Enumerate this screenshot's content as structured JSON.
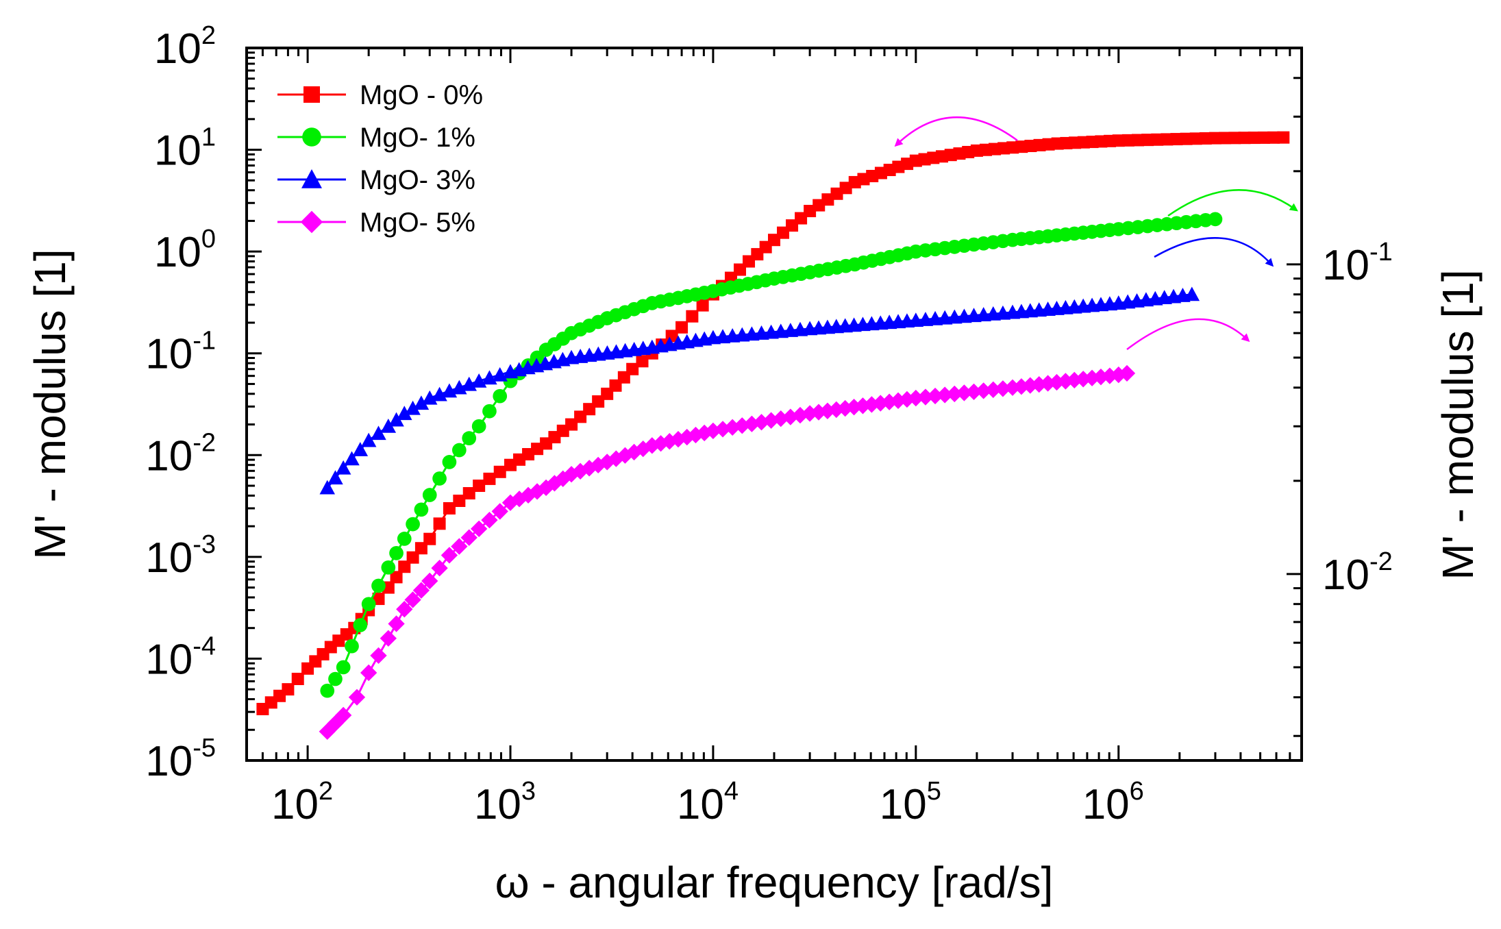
{
  "chart_data": {
    "type": "scatter",
    "title": "",
    "xlabel": "ω - angular frequency   [rad/s]",
    "ylabel": "M' - modulus  [1]",
    "ylabel_right": "M' - modulus  [1]",
    "x_scale": "log",
    "y_scale": "log",
    "xlim": [
      50,
      8000000
    ],
    "ylim": [
      1e-05,
      100
    ],
    "y2lim": [
      0.0025,
      0.5
    ],
    "x_ticks": [
      {
        "base": "10",
        "exp": "2",
        "value": 100
      },
      {
        "base": "10",
        "exp": "3",
        "value": 1000
      },
      {
        "base": "10",
        "exp": "4",
        "value": 10000
      },
      {
        "base": "10",
        "exp": "5",
        "value": 100000
      },
      {
        "base": "10",
        "exp": "6",
        "value": 1000000
      }
    ],
    "y_ticks": [
      {
        "base": "10",
        "exp": "-5",
        "value": 1e-05
      },
      {
        "base": "10",
        "exp": "-4",
        "value": 0.0001
      },
      {
        "base": "10",
        "exp": "-3",
        "value": 0.001
      },
      {
        "base": "10",
        "exp": "-2",
        "value": 0.01
      },
      {
        "base": "10",
        "exp": "-1",
        "value": 0.1
      },
      {
        "base": "10",
        "exp": "0",
        "value": 1
      },
      {
        "base": "10",
        "exp": "1",
        "value": 10
      },
      {
        "base": "10",
        "exp": "2",
        "value": 100
      }
    ],
    "y2_ticks": [
      {
        "base": "10",
        "exp": "-1",
        "value": 0.1
      },
      {
        "base": "10",
        "exp": "-2",
        "value": 0.01
      }
    ],
    "grid": false,
    "legend_position": "top-left",
    "series": [
      {
        "name": "MgO - 0%",
        "color": "#ff0000",
        "marker": "square",
        "axis": "left",
        "points": [
          [
            60,
            3.2e-05
          ],
          [
            80,
            5e-05
          ],
          [
            100,
            8e-05
          ],
          [
            130,
            0.00013
          ],
          [
            170,
            0.0002
          ],
          [
            200,
            0.0003
          ],
          [
            250,
            0.0005
          ],
          [
            300,
            0.0008
          ],
          [
            400,
            0.0015
          ],
          [
            500,
            0.003
          ],
          [
            700,
            0.005
          ],
          [
            1000,
            0.008
          ],
          [
            1500,
            0.013
          ],
          [
            2000,
            0.02
          ],
          [
            3000,
            0.04
          ],
          [
            4000,
            0.07
          ],
          [
            5000,
            0.1
          ],
          [
            7000,
            0.18
          ],
          [
            10000,
            0.38
          ],
          [
            15000,
            0.8
          ],
          [
            20000,
            1.3
          ],
          [
            30000,
            2.5
          ],
          [
            50000,
            4.8
          ],
          [
            100000,
            7.8
          ],
          [
            200000,
            9.8
          ],
          [
            500000,
            11.5
          ],
          [
            1000000,
            12.3
          ],
          [
            3000000,
            13
          ],
          [
            6500000,
            13.2
          ]
        ]
      },
      {
        "name": "MgO- 1%",
        "color": "#00ee00",
        "marker": "circle",
        "axis": "right",
        "points": [
          [
            125,
            0.0042
          ],
          [
            150,
            0.005
          ],
          [
            200,
            0.008
          ],
          [
            250,
            0.0105
          ],
          [
            300,
            0.013
          ],
          [
            400,
            0.018
          ],
          [
            500,
            0.023
          ],
          [
            700,
            0.03
          ],
          [
            1000,
            0.042
          ],
          [
            1500,
            0.053
          ],
          [
            2000,
            0.06
          ],
          [
            3000,
            0.067
          ],
          [
            5000,
            0.075
          ],
          [
            10000,
            0.082
          ],
          [
            20000,
            0.09
          ],
          [
            50000,
            0.1
          ],
          [
            100000,
            0.11
          ],
          [
            300000,
            0.12
          ],
          [
            1000000,
            0.13
          ],
          [
            3000000,
            0.14
          ]
        ]
      },
      {
        "name": "MgO- 3%",
        "color": "#0000ff",
        "marker": "triangle",
        "axis": "right",
        "points": [
          [
            125,
            0.019
          ],
          [
            150,
            0.022
          ],
          [
            200,
            0.027
          ],
          [
            250,
            0.03
          ],
          [
            300,
            0.033
          ],
          [
            400,
            0.037
          ],
          [
            500,
            0.039
          ],
          [
            700,
            0.042
          ],
          [
            1000,
            0.045
          ],
          [
            2000,
            0.05
          ],
          [
            5000,
            0.054
          ],
          [
            10000,
            0.058
          ],
          [
            30000,
            0.062
          ],
          [
            100000,
            0.066
          ],
          [
            300000,
            0.07
          ],
          [
            1000000,
            0.075
          ],
          [
            2300000,
            0.08
          ]
        ]
      },
      {
        "name": "MgO- 5%",
        "color": "#ff00ff",
        "marker": "diamond",
        "axis": "right",
        "points": [
          [
            125,
            0.0031
          ],
          [
            150,
            0.0035
          ],
          [
            175,
            0.004
          ],
          [
            200,
            0.0048
          ],
          [
            250,
            0.0062
          ],
          [
            300,
            0.0077
          ],
          [
            400,
            0.0095
          ],
          [
            500,
            0.0115
          ],
          [
            700,
            0.014
          ],
          [
            1000,
            0.017
          ],
          [
            1500,
            0.019
          ],
          [
            2000,
            0.021
          ],
          [
            3000,
            0.023
          ],
          [
            5000,
            0.026
          ],
          [
            10000,
            0.029
          ],
          [
            30000,
            0.033
          ],
          [
            100000,
            0.037
          ],
          [
            300000,
            0.04
          ],
          [
            1000000,
            0.044
          ],
          [
            1100000,
            0.0445
          ]
        ]
      }
    ]
  }
}
